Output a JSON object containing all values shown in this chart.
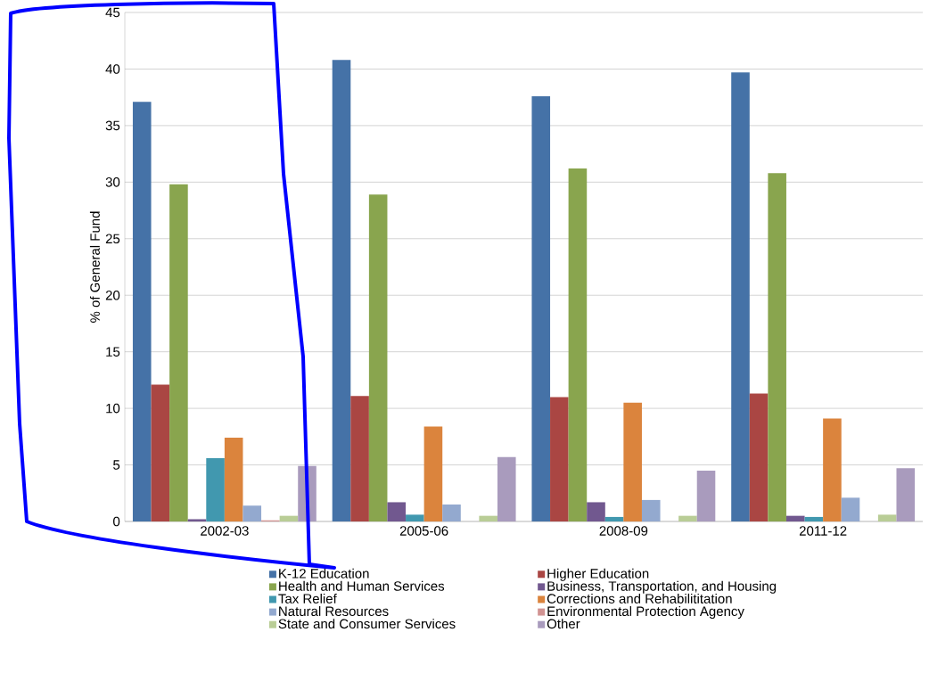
{
  "chart_data": {
    "type": "bar",
    "ylabel": "% of General  Fund",
    "categories": [
      "2002-03",
      "2005-06",
      "2008-09",
      "2011-12"
    ],
    "series": [
      {
        "name": "K-12 Education",
        "color": "#4572a7",
        "values": [
          37.1,
          40.8,
          37.6,
          39.7
        ]
      },
      {
        "name": "Higher Education",
        "color": "#aa4643",
        "values": [
          12.1,
          11.1,
          11.0,
          11.3
        ]
      },
      {
        "name": "Health and Human Services",
        "color": "#89a54e",
        "values": [
          29.8,
          28.9,
          31.2,
          30.8
        ]
      },
      {
        "name": "Business, Transportation, and Housing",
        "color": "#71588f",
        "values": [
          0.2,
          1.7,
          1.7,
          0.5
        ]
      },
      {
        "name": "Tax Relief",
        "color": "#4198af",
        "values": [
          5.6,
          0.6,
          0.4,
          0.4
        ]
      },
      {
        "name": "Corrections and Rehabilititation",
        "color": "#db843d",
        "values": [
          7.4,
          8.4,
          10.5,
          9.1
        ]
      },
      {
        "name": "Natural Resources",
        "color": "#93a9cf",
        "values": [
          1.4,
          1.5,
          1.9,
          2.1
        ]
      },
      {
        "name": "Environmental Protection Agency",
        "color": "#d19392",
        "values": [
          0.1,
          0,
          0,
          0
        ]
      },
      {
        "name": "State and Consumer Services",
        "color": "#b9cd96",
        "values": [
          0.5,
          0.5,
          0.5,
          0.6
        ]
      },
      {
        "name": "Other",
        "color": "#a99bbd",
        "values": [
          4.9,
          5.7,
          4.5,
          4.7
        ]
      }
    ],
    "ylim": [
      0,
      45
    ],
    "yticks": [
      0,
      5,
      10,
      15,
      20,
      25,
      30,
      35,
      40,
      45
    ],
    "grid": "y",
    "legend": "bottom"
  }
}
